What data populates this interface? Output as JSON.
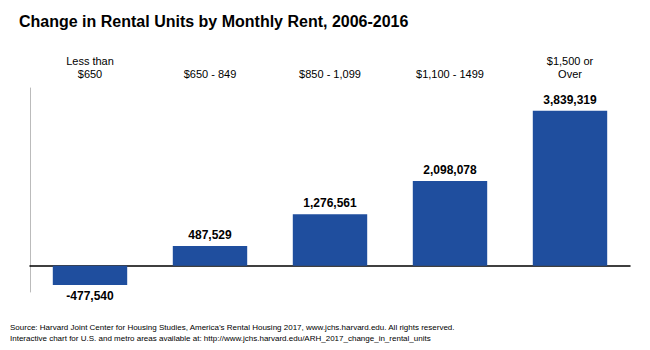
{
  "chart_data": {
    "type": "bar",
    "title": "Change in Rental Units by Monthly Rent, 2006-2016",
    "categories": [
      "Less than\n$650",
      "$650 - 849",
      "$850 - 1,099",
      "$1,100 - 1499",
      "$1,500 or\nOver"
    ],
    "values": [
      -477540,
      487529,
      1276561,
      2098078,
      3839319
    ],
    "value_labels": [
      "-477,540",
      "487,529",
      "1,276,561",
      "2,098,078",
      "3,839,319"
    ],
    "data_labels": true,
    "color": "#1f4e9e",
    "ylim": [
      -650000,
      4400000
    ],
    "tick_labels": false,
    "grid": false,
    "annotations": [
      "Source: Harvard Joint Center for Housing Studies, America’s Rental Housing 2017, www.jchs.harvard.edu. All rights reserved.\nInteractive chart for U.S. and metro areas available at: http://www.jchs.harvard.edu/ARH_2017_change_in_rental_units"
    ]
  }
}
